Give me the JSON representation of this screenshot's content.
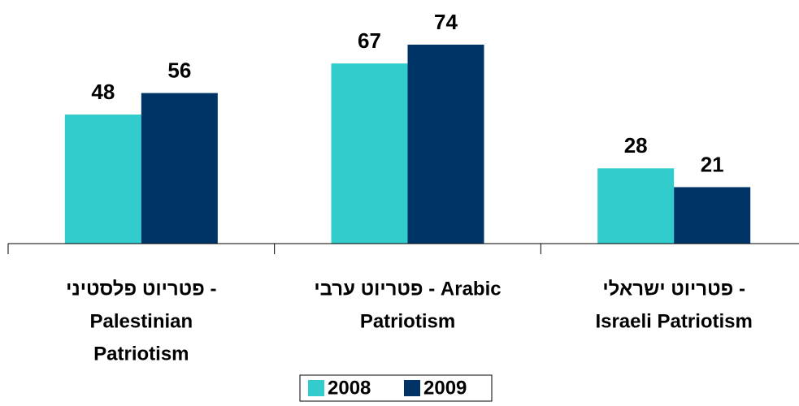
{
  "chart_data": {
    "type": "bar",
    "categories": [
      [
        "פטריוט פלסטיני -",
        "Palestinian",
        "Patriotism"
      ],
      [
        "פטריוט ערבי - Arabic",
        "Patriotism"
      ],
      [
        "פטריוט ישראלי -",
        "Israeli Patriotism"
      ]
    ],
    "series": [
      {
        "name": "2008",
        "color": "#33cccc",
        "values": [
          48,
          67,
          28
        ]
      },
      {
        "name": "2009",
        "color": "#003366",
        "values": [
          56,
          74,
          21
        ]
      }
    ],
    "legend": "bottom"
  }
}
